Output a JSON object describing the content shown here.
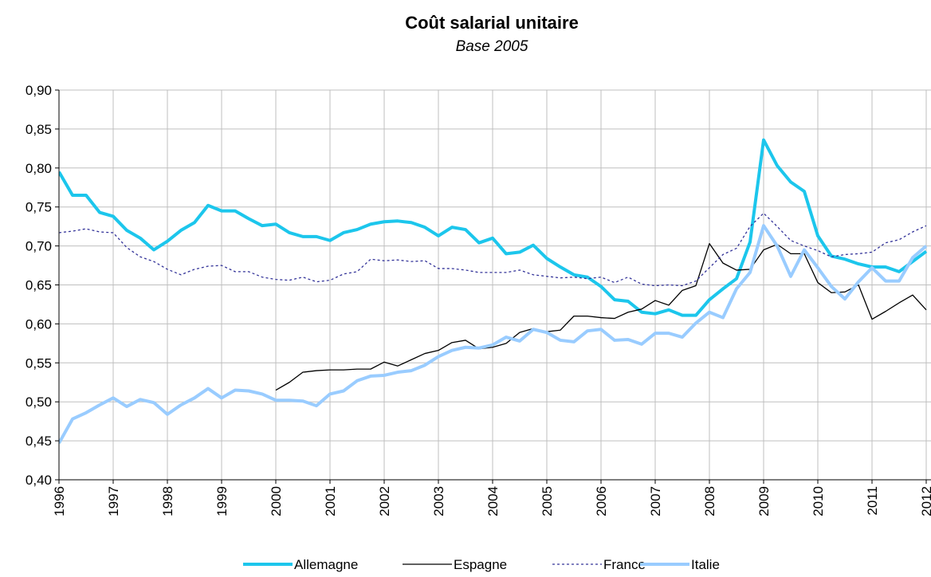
{
  "chart_data": {
    "type": "line",
    "title": "Coût salarial unitaire",
    "subtitle": "Base 2005",
    "x": [
      1996,
      1996.25,
      1996.5,
      1996.75,
      1997,
      1997.25,
      1997.5,
      1997.75,
      1998,
      1998.25,
      1998.5,
      1998.75,
      1999,
      1999.25,
      1999.5,
      1999.75,
      2000,
      2000.25,
      2000.5,
      2000.75,
      2001,
      2001.25,
      2001.5,
      2001.75,
      2002,
      2002.25,
      2002.5,
      2002.75,
      2003,
      2003.25,
      2003.5,
      2003.75,
      2004,
      2004.25,
      2004.5,
      2004.75,
      2005,
      2005.25,
      2005.5,
      2005.75,
      2006,
      2006.25,
      2006.5,
      2006.75,
      2007,
      2007.25,
      2007.5,
      2007.75,
      2008,
      2008.25,
      2008.5,
      2008.75,
      2009,
      2009.25,
      2009.5,
      2009.75,
      2010,
      2010.25,
      2010.5,
      2010.75,
      2011,
      2011.25,
      2011.5,
      2011.75,
      2012
    ],
    "xlim": [
      1996,
      2012
    ],
    "xticks": [
      1996,
      1997,
      1998,
      1999,
      2000,
      2001,
      2002,
      2003,
      2004,
      2005,
      2006,
      2007,
      2008,
      2009,
      2010,
      2011,
      2012
    ],
    "ylim": [
      0.4,
      0.9
    ],
    "yticks": [
      {
        "value": 0.4,
        "label": "0,40"
      },
      {
        "value": 0.45,
        "label": "0,45"
      },
      {
        "value": 0.5,
        "label": "0,50"
      },
      {
        "value": 0.55,
        "label": "0,55"
      },
      {
        "value": 0.6,
        "label": "0,60"
      },
      {
        "value": 0.65,
        "label": "0,65"
      },
      {
        "value": 0.7,
        "label": "0,70"
      },
      {
        "value": 0.75,
        "label": "0,75"
      },
      {
        "value": 0.8,
        "label": "0,80"
      },
      {
        "value": 0.85,
        "label": "0,85"
      },
      {
        "value": 0.9,
        "label": "0,90"
      }
    ],
    "grid": true,
    "legend": "bottom",
    "series": [
      {
        "name": "Allemagne",
        "color": "#1cc6ec",
        "width": 4,
        "dash": false,
        "values": [
          0.795,
          0.765,
          0.765,
          0.743,
          0.738,
          0.72,
          0.71,
          0.695,
          0.706,
          0.72,
          0.73,
          0.752,
          0.745,
          0.745,
          0.735,
          0.726,
          0.728,
          0.717,
          0.712,
          0.712,
          0.707,
          0.717,
          0.721,
          0.728,
          0.731,
          0.732,
          0.73,
          0.724,
          0.713,
          0.724,
          0.721,
          0.704,
          0.71,
          0.69,
          0.692,
          0.701,
          0.684,
          0.673,
          0.663,
          0.66,
          0.648,
          0.631,
          0.629,
          0.615,
          0.613,
          0.618,
          0.611,
          0.611,
          0.631,
          0.645,
          0.658,
          0.705,
          0.836,
          0.803,
          0.782,
          0.77,
          0.713,
          0.687,
          0.683,
          0.677,
          0.673,
          0.673,
          0.667,
          0.68,
          0.693
        ]
      },
      {
        "name": "Espagne",
        "color": "#000000",
        "width": 1.3,
        "dash": false,
        "values": [
          null,
          null,
          null,
          null,
          null,
          null,
          null,
          null,
          null,
          null,
          null,
          null,
          null,
          null,
          null,
          null,
          0.515,
          0.525,
          0.538,
          0.54,
          0.541,
          0.541,
          0.542,
          0.542,
          0.551,
          0.546,
          0.554,
          0.562,
          0.566,
          0.576,
          0.579,
          0.568,
          0.57,
          0.575,
          0.589,
          0.594,
          0.59,
          0.592,
          0.61,
          0.61,
          0.608,
          0.607,
          0.615,
          0.619,
          0.63,
          0.624,
          0.643,
          0.649,
          0.703,
          0.678,
          0.669,
          0.67,
          0.695,
          0.702,
          0.69,
          0.69,
          0.653,
          0.64,
          0.641,
          0.65,
          0.606,
          0.616,
          0.627,
          0.637,
          0.618
        ]
      },
      {
        "name": "France",
        "color": "#333399",
        "width": 1.3,
        "dash": true,
        "values": [
          0.717,
          0.719,
          0.722,
          0.718,
          0.717,
          0.698,
          0.686,
          0.68,
          0.67,
          0.663,
          0.67,
          0.674,
          0.675,
          0.667,
          0.667,
          0.66,
          0.657,
          0.656,
          0.66,
          0.654,
          0.656,
          0.664,
          0.667,
          0.683,
          0.681,
          0.682,
          0.68,
          0.681,
          0.671,
          0.671,
          0.669,
          0.666,
          0.666,
          0.666,
          0.669,
          0.663,
          0.661,
          0.659,
          0.66,
          0.658,
          0.66,
          0.653,
          0.66,
          0.651,
          0.649,
          0.65,
          0.649,
          0.655,
          0.672,
          0.689,
          0.697,
          0.725,
          0.742,
          0.725,
          0.707,
          0.7,
          0.694,
          0.686,
          0.689,
          0.69,
          0.692,
          0.704,
          0.708,
          0.718,
          0.726
        ]
      },
      {
        "name": "Italie",
        "color": "#99ccff",
        "width": 4,
        "dash": false,
        "values": [
          0.447,
          0.478,
          0.486,
          0.496,
          0.505,
          0.494,
          0.503,
          0.499,
          0.484,
          0.496,
          0.505,
          0.517,
          0.505,
          0.515,
          0.514,
          0.51,
          0.502,
          0.502,
          0.501,
          0.495,
          0.51,
          0.514,
          0.527,
          0.533,
          0.534,
          0.538,
          0.54,
          0.547,
          0.558,
          0.566,
          0.57,
          0.569,
          0.573,
          0.583,
          0.578,
          0.593,
          0.589,
          0.579,
          0.577,
          0.591,
          0.593,
          0.579,
          0.58,
          0.574,
          0.588,
          0.588,
          0.583,
          0.601,
          0.615,
          0.608,
          0.645,
          0.666,
          0.726,
          0.7,
          0.661,
          0.695,
          0.672,
          0.648,
          0.632,
          0.654,
          0.672,
          0.655,
          0.655,
          0.685,
          0.7
        ]
      }
    ]
  }
}
